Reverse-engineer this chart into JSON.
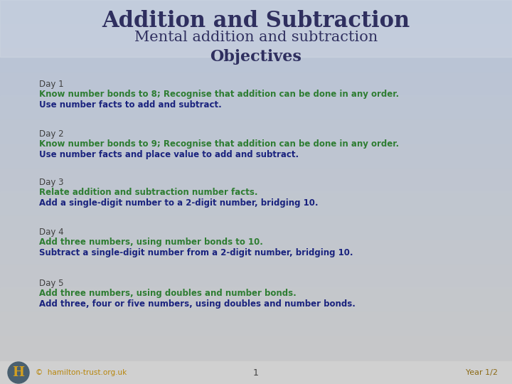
{
  "title1": "Addition and Subtraction",
  "title2": "Mental addition and subtraction",
  "objectives_title": "Objectives",
  "title1_color": "#2F2F5F",
  "title2_color": "#2F2F5F",
  "objectives_color": "#2F2F5F",
  "day_label_color": "#404040",
  "footer_color": "#B8860B",
  "page_number_color": "#404040",
  "year_color": "#8B6914",
  "bg_top_color": "#B8C4D8",
  "bg_bottom_color": "#C8C8C8",
  "days": [
    {
      "label": "Day 1",
      "lines": [
        {
          "text": "Know number bonds to 8; Recognise that addition can be done in any order.",
          "color": "#2E7D32",
          "bold": true
        },
        {
          "text": "Use number facts to add and subtract.",
          "color": "#1A237E",
          "bold": true
        }
      ]
    },
    {
      "label": "Day 2",
      "lines": [
        {
          "text": "Know number bonds to 9; Recognise that addition can be done in any order.",
          "color": "#2E7D32",
          "bold": true
        },
        {
          "text": "Use number facts and place value to add and subtract.",
          "color": "#1A237E",
          "bold": true
        }
      ]
    },
    {
      "label": "Day 3",
      "lines": [
        {
          "text": "Relate addition and subtraction number facts.",
          "color": "#2E7D32",
          "bold": true
        },
        {
          "text": "Add a single-digit number to a 2-digit number, bridging 10.",
          "color": "#1A237E",
          "bold": true
        }
      ]
    },
    {
      "label": "Day 4",
      "lines": [
        {
          "text": "Add three numbers, using number bonds to 10.",
          "color": "#2E7D32",
          "bold": true
        },
        {
          "text": "Subtract a single-digit number from a 2-digit number, bridging 10.",
          "color": "#1A237E",
          "bold": true
        }
      ]
    },
    {
      "label": "Day 5",
      "lines": [
        {
          "text": "Add three numbers, using doubles and number bonds.",
          "color": "#2E7D32",
          "bold": true
        },
        {
          "text": "Add three, four or five numbers, using doubles and number bonds.",
          "color": "#1A237E",
          "bold": true
        }
      ]
    }
  ],
  "footer_copyright": "©  hamilton-trust.org.uk",
  "footer_page": "1",
  "footer_year": "Year 1/2",
  "logo_bg": "#4A6070",
  "logo_text": "H",
  "logo_text_color": "#D4A020"
}
